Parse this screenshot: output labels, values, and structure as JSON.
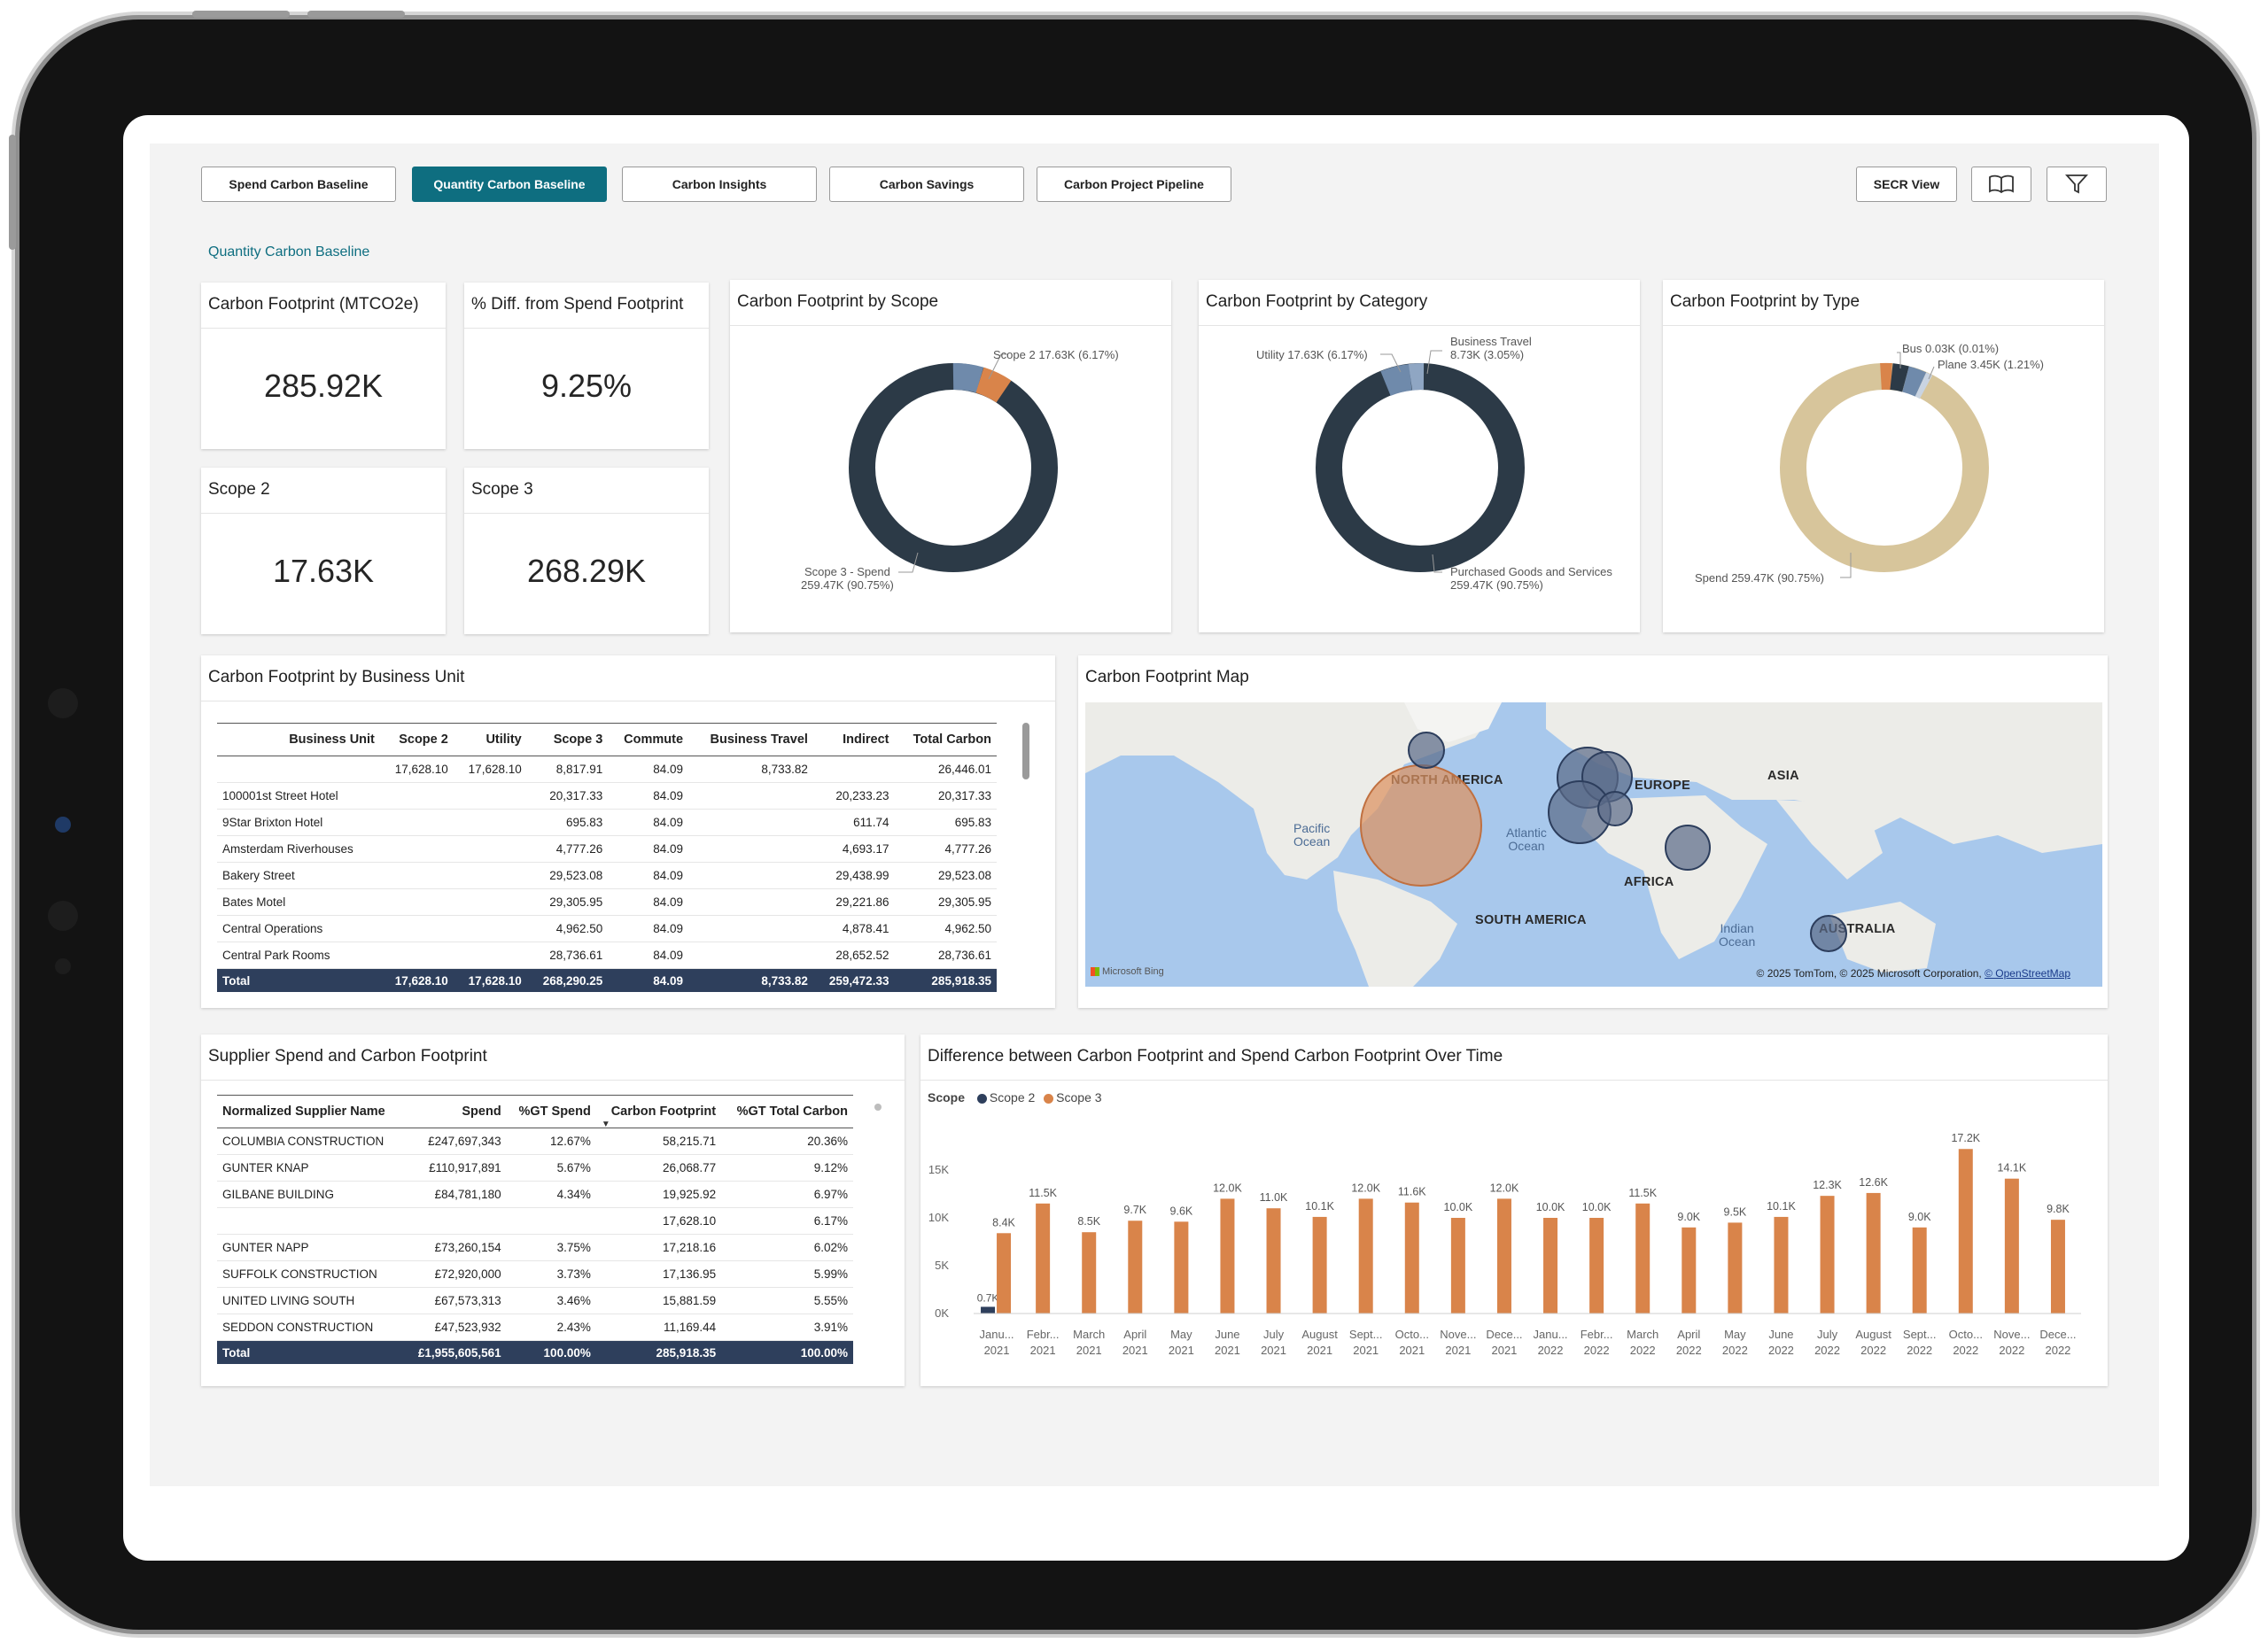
{
  "nav": {
    "tabs": [
      {
        "label": "Spend Carbon Baseline",
        "active": false
      },
      {
        "label": "Quantity Carbon Baseline",
        "active": true
      },
      {
        "label": "Carbon Insights",
        "active": false
      },
      {
        "label": "Carbon Savings",
        "active": false
      },
      {
        "label": "Carbon Project Pipeline",
        "active": false
      }
    ],
    "secr_label": "SECR View",
    "book_icon": "book-icon",
    "filter_icon": "filter-icon"
  },
  "page_label": "Quantity Carbon Baseline",
  "colors": {
    "accent": "#0e6e80",
    "dark": "#2c3a47",
    "orange": "#d9844a",
    "tan": "#d7c59b",
    "slate": "#6f8aab",
    "navy": "#2e3f5c"
  },
  "kpis": [
    {
      "title": "Carbon Footprint (MTCO2e)",
      "value": "285.92K"
    },
    {
      "title": "% Diff. from Spend Footprint",
      "value": "9.25%"
    },
    {
      "title": "Scope 2",
      "value": "17.63K"
    },
    {
      "title": "Scope 3",
      "value": "268.29K"
    }
  ],
  "donut_scope": {
    "title": "Carbon Footprint by Scope",
    "label_top": "Scope 2 17.63K (6.17%)",
    "label_bottom_1": "Scope 3 - Spend",
    "label_bottom_2": "259.47K (90.75%)"
  },
  "donut_category": {
    "title": "Carbon Footprint by Category",
    "label_left": "Utility 17.63K (6.17%)",
    "label_top_1": "Business Travel",
    "label_top_2": "8.73K (3.05%)",
    "label_bottom_1": "Purchased Goods and Services",
    "label_bottom_2": "259.47K (90.75%)"
  },
  "donut_type": {
    "title": "Carbon Footprint by Type",
    "label_top_1": "Bus 0.03K (0.01%)",
    "label_top_2": "Plane 3.45K (1.21%)",
    "label_bottom": "Spend 259.47K (90.75%)"
  },
  "business_unit": {
    "title": "Carbon Footprint by Business Unit",
    "columns": [
      "Business Unit",
      "Scope 2",
      "Utility",
      "Scope 3",
      "Commute",
      "Business Travel",
      "Indirect",
      "Total Carbon"
    ],
    "rows": [
      [
        "",
        "17,628.10",
        "17,628.10",
        "8,817.91",
        "84.09",
        "8,733.82",
        "",
        "26,446.01"
      ],
      [
        "100001st Street Hotel",
        "",
        "",
        "20,317.33",
        "84.09",
        "",
        "20,233.23",
        "20,317.33"
      ],
      [
        "9Star Brixton Hotel",
        "",
        "",
        "695.83",
        "84.09",
        "",
        "611.74",
        "695.83"
      ],
      [
        "Amsterdam Riverhouses",
        "",
        "",
        "4,777.26",
        "84.09",
        "",
        "4,693.17",
        "4,777.26"
      ],
      [
        "Bakery Street",
        "",
        "",
        "29,523.08",
        "84.09",
        "",
        "29,438.99",
        "29,523.08"
      ],
      [
        "Bates Motel",
        "",
        "",
        "29,305.95",
        "84.09",
        "",
        "29,221.86",
        "29,305.95"
      ],
      [
        "Central Operations",
        "",
        "",
        "4,962.50",
        "84.09",
        "",
        "4,878.41",
        "4,962.50"
      ],
      [
        "Central Park Rooms",
        "",
        "",
        "28,736.61",
        "84.09",
        "",
        "28,652.52",
        "28,736.61"
      ]
    ],
    "total": [
      "Total",
      "17,628.10",
      "17,628.10",
      "268,290.25",
      "84.09",
      "8,733.82",
      "259,472.33",
      "285,918.35"
    ]
  },
  "map": {
    "title": "Carbon Footprint Map",
    "regions": [
      "NORTH AMERICA",
      "EUROPE",
      "ASIA",
      "AFRICA",
      "SOUTH AMERICA",
      "AUSTRALIA"
    ],
    "oceans": [
      [
        "Pacific",
        "Ocean"
      ],
      [
        "Atlantic",
        "Ocean"
      ],
      [
        "Indian",
        "Ocean"
      ]
    ],
    "bing": "Microsoft Bing",
    "copyright": "© 2025 TomTom, © 2025 Microsoft Corporation,",
    "osm": "© OpenStreetMap"
  },
  "supplier": {
    "title": "Supplier Spend and Carbon Footprint",
    "columns": [
      "Normalized Supplier Name",
      "Spend",
      "%GT Spend",
      "Carbon Footprint",
      "%GT Total Carbon"
    ],
    "rows": [
      [
        "COLUMBIA CONSTRUCTION",
        "£247,697,343",
        "12.67%",
        "58,215.71",
        "20.36%"
      ],
      [
        "GUNTER KNAP",
        "£110,917,891",
        "5.67%",
        "26,068.77",
        "9.12%"
      ],
      [
        "GILBANE BUILDING",
        "£84,781,180",
        "4.34%",
        "19,925.92",
        "6.97%"
      ],
      [
        "",
        "",
        "",
        "17,628.10",
        "6.17%"
      ],
      [
        "GUNTER NAPP",
        "£73,260,154",
        "3.75%",
        "17,218.16",
        "6.02%"
      ],
      [
        "SUFFOLK CONSTRUCTION",
        "£72,920,000",
        "3.73%",
        "17,136.95",
        "5.99%"
      ],
      [
        "UNITED LIVING SOUTH",
        "£67,573,313",
        "3.46%",
        "15,881.59",
        "5.55%"
      ],
      [
        "SEDDON CONSTRUCTION",
        "£47,523,932",
        "2.43%",
        "11,169.44",
        "3.91%"
      ]
    ],
    "total": [
      "Total",
      "£1,955,605,561",
      "100.00%",
      "285,918.35",
      "100.00%"
    ]
  },
  "chart_data": {
    "type": "bar",
    "title": "Difference between Carbon Footprint and Spend Carbon Footprint Over Time",
    "legend_title": "Scope",
    "categories": [
      [
        "Janu...",
        "2021"
      ],
      [
        "Febr...",
        "2021"
      ],
      [
        "March",
        "2021"
      ],
      [
        "April",
        "2021"
      ],
      [
        "May",
        "2021"
      ],
      [
        "June",
        "2021"
      ],
      [
        "July",
        "2021"
      ],
      [
        "August",
        "2021"
      ],
      [
        "Sept...",
        "2021"
      ],
      [
        "Octo...",
        "2021"
      ],
      [
        "Nove...",
        "2021"
      ],
      [
        "Dece...",
        "2021"
      ],
      [
        "Janu...",
        "2022"
      ],
      [
        "Febr...",
        "2022"
      ],
      [
        "March",
        "2022"
      ],
      [
        "April",
        "2022"
      ],
      [
        "May",
        "2022"
      ],
      [
        "June",
        "2022"
      ],
      [
        "July",
        "2022"
      ],
      [
        "August",
        "2022"
      ],
      [
        "Sept...",
        "2022"
      ],
      [
        "Octo...",
        "2022"
      ],
      [
        "Nove...",
        "2022"
      ],
      [
        "Dece...",
        "2022"
      ]
    ],
    "series": [
      {
        "name": "Scope 2",
        "color": "#2e3f5c",
        "values": [
          700,
          0,
          0,
          0,
          0,
          0,
          0,
          0,
          0,
          0,
          0,
          0,
          0,
          0,
          0,
          0,
          0,
          0,
          0,
          0,
          0,
          0,
          0,
          0
        ]
      },
      {
        "name": "Scope 3",
        "color": "#d9844a",
        "values": [
          8400,
          11500,
          8500,
          9700,
          9600,
          12000,
          11000,
          10100,
          12000,
          11600,
          10000,
          12000,
          10000,
          10000,
          11500,
          9000,
          9500,
          10100,
          12300,
          12600,
          9000,
          17200,
          14100,
          9800
        ]
      }
    ],
    "data_labels": [
      "8.4K",
      "11.5K",
      "8.5K",
      "9.7K",
      "9.6K",
      "12.0K",
      "11.0K",
      "10.1K",
      "12.0K",
      "11.6K",
      "10.0K",
      "12.0K",
      "10.0K",
      "10.0K",
      "11.5K",
      "9.0K",
      "9.5K",
      "10.1K",
      "12.3K",
      "12.6K",
      "9.0K",
      "17.2K",
      "14.1K",
      "9.8K"
    ],
    "scope2_label": "0.7K",
    "yticks": [
      "0K",
      "5K",
      "10K",
      "15K"
    ],
    "ylim": [
      0,
      20000
    ]
  }
}
